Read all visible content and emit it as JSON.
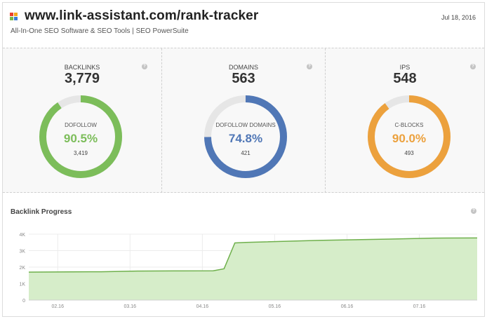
{
  "header": {
    "title": "www.link-assistant.com/rank-tracker",
    "subtitle": "All-In-One SEO Software & SEO Tools | SEO PowerSuite",
    "date": "Jul 18, 2016",
    "logo_icon": "four-squares-logo-icon",
    "logo_colors": [
      "#e8412c",
      "#f4a81c",
      "#7ab648",
      "#3b7dd8"
    ]
  },
  "panels": [
    {
      "label": "BACKLINKS",
      "value": "3,779",
      "ring_label": "DOFOLLOW",
      "percent_text": "90.5%",
      "percent": 90.5,
      "count": "3,419",
      "color": "#7cbd5a"
    },
    {
      "label": "DOMAINS",
      "value": "563",
      "ring_label": "DOFOLLOW DOMAINS",
      "percent_text": "74.8%",
      "percent": 74.8,
      "count": "421",
      "color": "#5077b6"
    },
    {
      "label": "IPS",
      "value": "548",
      "ring_label": "C-BLOCKS",
      "percent_text": "90.0%",
      "percent": 90.0,
      "count": "493",
      "color": "#eca13d"
    }
  ],
  "help_icon": "?",
  "chart_data": {
    "type": "area",
    "title": "Backlink Progress",
    "categories": [
      "02.16",
      "03.16",
      "04.16",
      "05.16",
      "06.16",
      "07.16"
    ],
    "y_ticks": [
      "0",
      "1K",
      "2K",
      "3K",
      "4K"
    ],
    "ylim": [
      0,
      4000
    ],
    "xlim": [
      0,
      6.2
    ],
    "points": [
      [
        0,
        1700
      ],
      [
        0.6,
        1710
      ],
      [
        1.0,
        1720
      ],
      [
        1.5,
        1760
      ],
      [
        2.0,
        1770
      ],
      [
        2.55,
        1780
      ],
      [
        2.7,
        1900
      ],
      [
        2.85,
        3470
      ],
      [
        3.0,
        3500
      ],
      [
        4.0,
        3620
      ],
      [
        5.0,
        3700
      ],
      [
        5.6,
        3760
      ],
      [
        6.2,
        3770
      ]
    ],
    "fill_color": "#d6edc9",
    "line_color": "#6fb04c",
    "grid": true,
    "legend": "none"
  }
}
